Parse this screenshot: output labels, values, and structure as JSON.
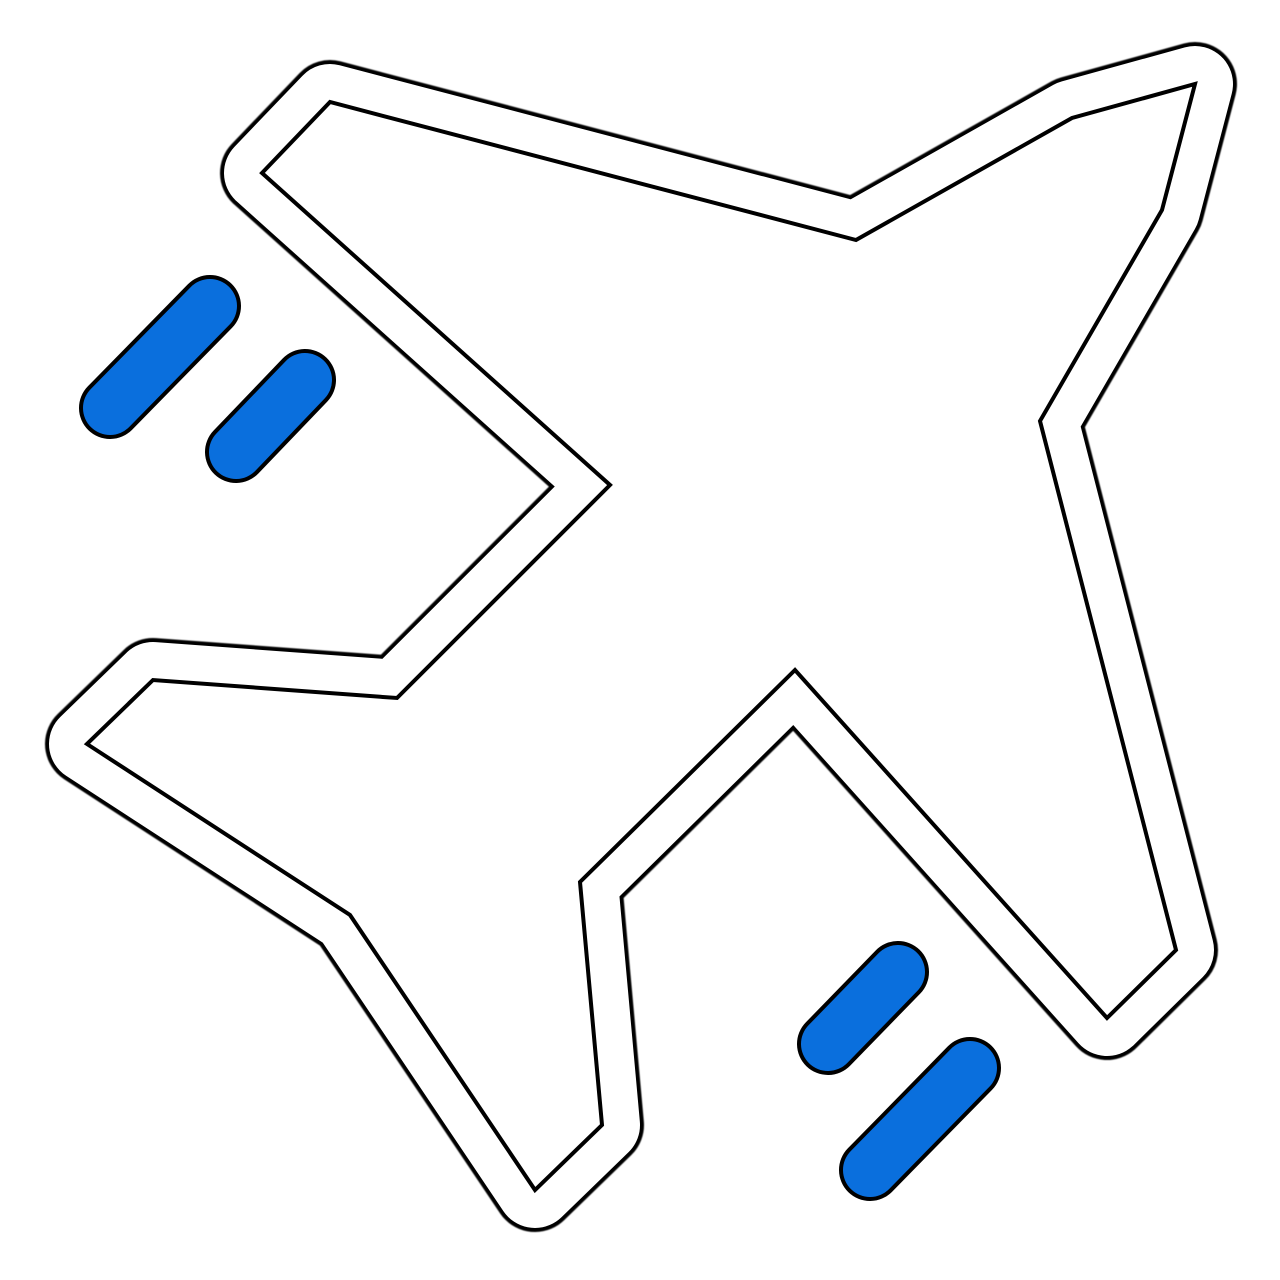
{
  "icon": {
    "name": "airplane-takeoff-icon",
    "colors": {
      "outline": "#000000",
      "body": "#ffffff",
      "accent": "#0a6fdd",
      "background": "#ffffff"
    },
    "speed_lines": {
      "count": 4
    }
  }
}
